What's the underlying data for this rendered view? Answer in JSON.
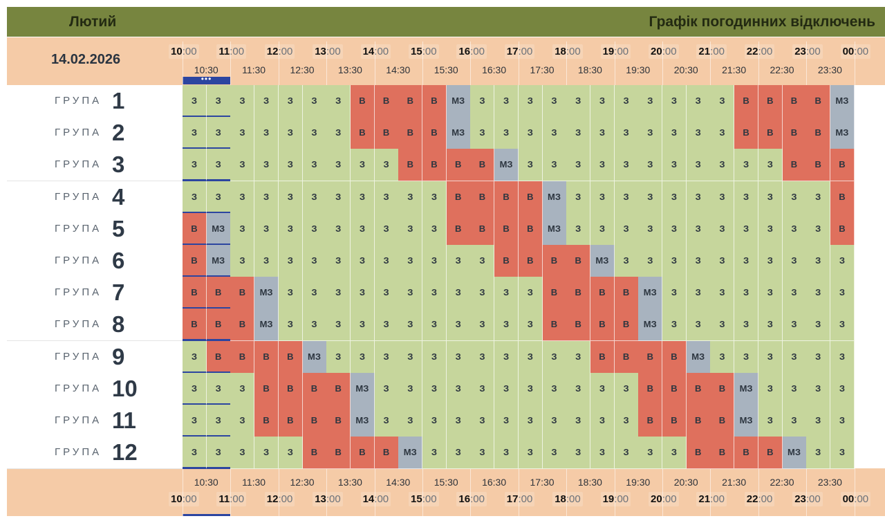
{
  "header": {
    "month": "Лютий",
    "title": "Графік погодинних відключень",
    "date": "14.02.2026"
  },
  "colors": {
    "on": "#c6d69c",
    "off": "#df705d",
    "maybe": "#a8b3bf",
    "current": "#2c45a0",
    "band": "#f5cba7",
    "title_bar": "#77853f"
  },
  "legend_codes": {
    "on": "З",
    "off": "В",
    "maybe": "МЗ"
  },
  "time_axis": {
    "hour_ticks": [
      {
        "h": "10",
        "m": ":00"
      },
      {
        "h": "11",
        "m": ":00"
      },
      {
        "h": "12",
        "m": ":00"
      },
      {
        "h": "13",
        "m": ":00"
      },
      {
        "h": "14",
        "m": ":00"
      },
      {
        "h": "15",
        "m": ":00"
      },
      {
        "h": "16",
        "m": ":00"
      },
      {
        "h": "17",
        "m": ":00"
      },
      {
        "h": "18",
        "m": ":00"
      },
      {
        "h": "19",
        "m": ":00"
      },
      {
        "h": "20",
        "m": ":00"
      },
      {
        "h": "21",
        "m": ":00"
      },
      {
        "h": "22",
        "m": ":00"
      },
      {
        "h": "23",
        "m": ":00"
      },
      {
        "h": "00",
        "m": ":00"
      }
    ],
    "half_ticks": [
      "10:30",
      "11:30",
      "12:30",
      "13:30",
      "14:30",
      "15:30",
      "16:30",
      "17:30",
      "18:30",
      "19:30",
      "20:30",
      "21:30",
      "22:30",
      "23:30"
    ]
  },
  "current_slot": {
    "indicator": "•••"
  },
  "group_label": "ГРУПА",
  "groups": [
    {
      "num": "1",
      "slots": [
        "З",
        "З",
        "З",
        "З",
        "З",
        "З",
        "З",
        "В",
        "В",
        "В",
        "В",
        "МЗ",
        "З",
        "З",
        "З",
        "З",
        "З",
        "З",
        "З",
        "З",
        "З",
        "З",
        "З",
        "В",
        "В",
        "В",
        "В",
        "МЗ"
      ]
    },
    {
      "num": "2",
      "slots": [
        "З",
        "З",
        "З",
        "З",
        "З",
        "З",
        "З",
        "В",
        "В",
        "В",
        "В",
        "МЗ",
        "З",
        "З",
        "З",
        "З",
        "З",
        "З",
        "З",
        "З",
        "З",
        "З",
        "З",
        "В",
        "В",
        "В",
        "В",
        "МЗ"
      ]
    },
    {
      "num": "3",
      "slots": [
        "З",
        "З",
        "З",
        "З",
        "З",
        "З",
        "З",
        "З",
        "З",
        "В",
        "В",
        "В",
        "В",
        "МЗ",
        "З",
        "З",
        "З",
        "З",
        "З",
        "З",
        "З",
        "З",
        "З",
        "З",
        "З",
        "В",
        "В",
        "В"
      ]
    },
    {
      "num": "4",
      "slots": [
        "З",
        "З",
        "З",
        "З",
        "З",
        "З",
        "З",
        "З",
        "З",
        "З",
        "З",
        "В",
        "В",
        "В",
        "В",
        "МЗ",
        "З",
        "З",
        "З",
        "З",
        "З",
        "З",
        "З",
        "З",
        "З",
        "З",
        "З",
        "В"
      ]
    },
    {
      "num": "5",
      "slots": [
        "В",
        "МЗ",
        "З",
        "З",
        "З",
        "З",
        "З",
        "З",
        "З",
        "З",
        "З",
        "В",
        "В",
        "В",
        "В",
        "МЗ",
        "З",
        "З",
        "З",
        "З",
        "З",
        "З",
        "З",
        "З",
        "З",
        "З",
        "З",
        "В"
      ]
    },
    {
      "num": "6",
      "slots": [
        "В",
        "МЗ",
        "З",
        "З",
        "З",
        "З",
        "З",
        "З",
        "З",
        "З",
        "З",
        "З",
        "З",
        "В",
        "В",
        "В",
        "В",
        "МЗ",
        "З",
        "З",
        "З",
        "З",
        "З",
        "З",
        "З",
        "З",
        "З",
        "З"
      ]
    },
    {
      "num": "7",
      "slots": [
        "В",
        "В",
        "В",
        "МЗ",
        "З",
        "З",
        "З",
        "З",
        "З",
        "З",
        "З",
        "З",
        "З",
        "З",
        "З",
        "В",
        "В",
        "В",
        "В",
        "МЗ",
        "З",
        "З",
        "З",
        "З",
        "З",
        "З",
        "З",
        "З"
      ]
    },
    {
      "num": "8",
      "slots": [
        "В",
        "В",
        "В",
        "МЗ",
        "З",
        "З",
        "З",
        "З",
        "З",
        "З",
        "З",
        "З",
        "З",
        "З",
        "З",
        "В",
        "В",
        "В",
        "В",
        "МЗ",
        "З",
        "З",
        "З",
        "З",
        "З",
        "З",
        "З",
        "З"
      ]
    },
    {
      "num": "9",
      "slots": [
        "З",
        "В",
        "В",
        "В",
        "В",
        "МЗ",
        "З",
        "З",
        "З",
        "З",
        "З",
        "З",
        "З",
        "З",
        "З",
        "З",
        "З",
        "В",
        "В",
        "В",
        "В",
        "МЗ",
        "З",
        "З",
        "З",
        "З",
        "З",
        "З"
      ]
    },
    {
      "num": "10",
      "slots": [
        "З",
        "З",
        "З",
        "В",
        "В",
        "В",
        "В",
        "МЗ",
        "З",
        "З",
        "З",
        "З",
        "З",
        "З",
        "З",
        "З",
        "З",
        "З",
        "З",
        "В",
        "В",
        "В",
        "В",
        "МЗ",
        "З",
        "З",
        "З",
        "З"
      ]
    },
    {
      "num": "11",
      "slots": [
        "З",
        "З",
        "З",
        "В",
        "В",
        "В",
        "В",
        "МЗ",
        "З",
        "З",
        "З",
        "З",
        "З",
        "З",
        "З",
        "З",
        "З",
        "З",
        "З",
        "В",
        "В",
        "В",
        "В",
        "МЗ",
        "З",
        "З",
        "З",
        "З"
      ]
    },
    {
      "num": "12",
      "slots": [
        "З",
        "З",
        "З",
        "З",
        "З",
        "В",
        "В",
        "В",
        "В",
        "МЗ",
        "З",
        "З",
        "З",
        "З",
        "З",
        "З",
        "З",
        "З",
        "З",
        "З",
        "З",
        "В",
        "В",
        "В",
        "В",
        "МЗ",
        "З",
        "З"
      ]
    }
  ]
}
